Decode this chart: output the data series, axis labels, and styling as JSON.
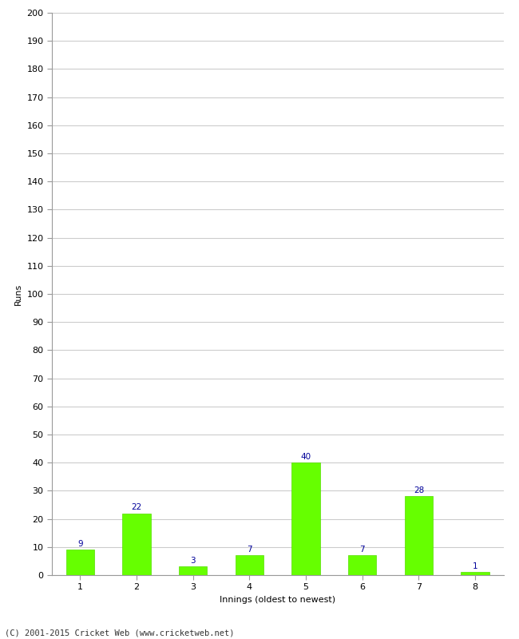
{
  "innings": [
    1,
    2,
    3,
    4,
    5,
    6,
    7,
    8
  ],
  "runs": [
    9,
    22,
    3,
    7,
    40,
    7,
    28,
    1
  ],
  "bar_color": "#66ff00",
  "bar_edge_color": "#55dd00",
  "label_color": "#000099",
  "xlabel": "Innings (oldest to newest)",
  "ylabel": "Runs",
  "ylim": [
    0,
    200
  ],
  "ytick_step": 10,
  "background_color": "#ffffff",
  "grid_color": "#cccccc",
  "footer": "(C) 2001-2015 Cricket Web (www.cricketweb.net)",
  "label_fontsize": 7.5,
  "axis_label_fontsize": 8,
  "tick_fontsize": 8,
  "footer_fontsize": 7.5,
  "bar_width": 0.5
}
